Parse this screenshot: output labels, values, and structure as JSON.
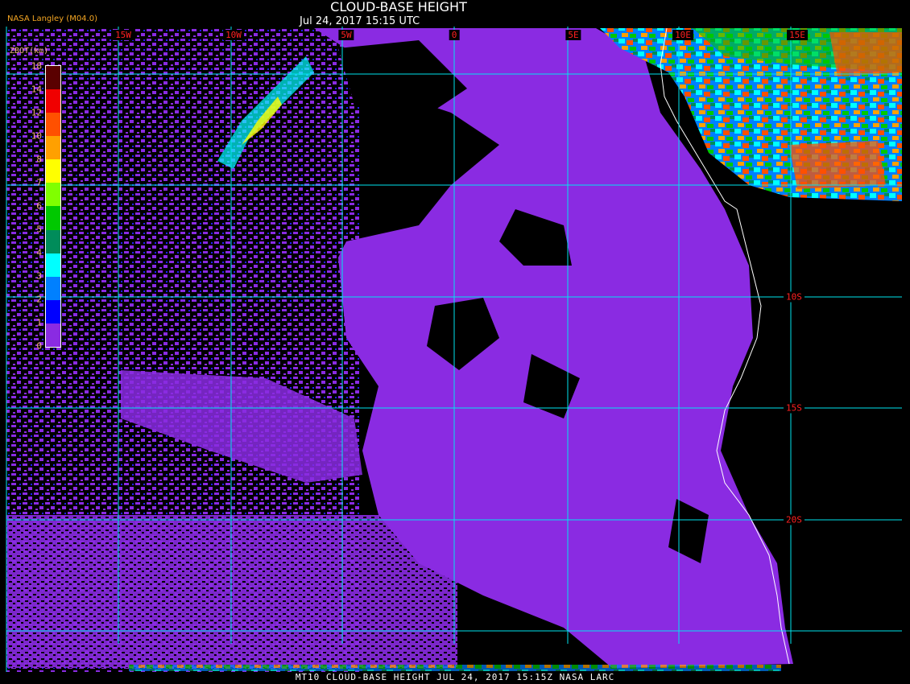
{
  "header": {
    "title": "CLOUD-BASE HEIGHT",
    "subtitle": "Jul 24, 2017 15:15 UTC",
    "credit": "NASA Langley (M04.0)"
  },
  "footer": "MT10  CLOUD-BASE HEIGHT   JUL 24, 2017 15:15Z   NASA LARC",
  "grid": {
    "longitude_labels": [
      "15W",
      "10W",
      "5W",
      "0",
      "5E",
      "10E",
      "15E"
    ],
    "latitude_labels": [
      "10S",
      "15S",
      "20S"
    ],
    "grid_color": "#00e5ee",
    "coastline_color": "#ffffff"
  },
  "legend": {
    "title": "ZBOT(km)",
    "ticks": [
      "18",
      "14",
      "12",
      "10",
      "8",
      "7",
      "6",
      "5",
      "4",
      "3",
      "2",
      "1",
      "0"
    ],
    "colors": [
      "#5a0000",
      "#5a0000",
      "#f00000",
      "#ff5000",
      "#ffa000",
      "#ffff00",
      "#80ff00",
      "#00c800",
      "#008c5a",
      "#00ffff",
      "#0080ff",
      "#0000ff",
      "#8a2be2"
    ]
  }
}
